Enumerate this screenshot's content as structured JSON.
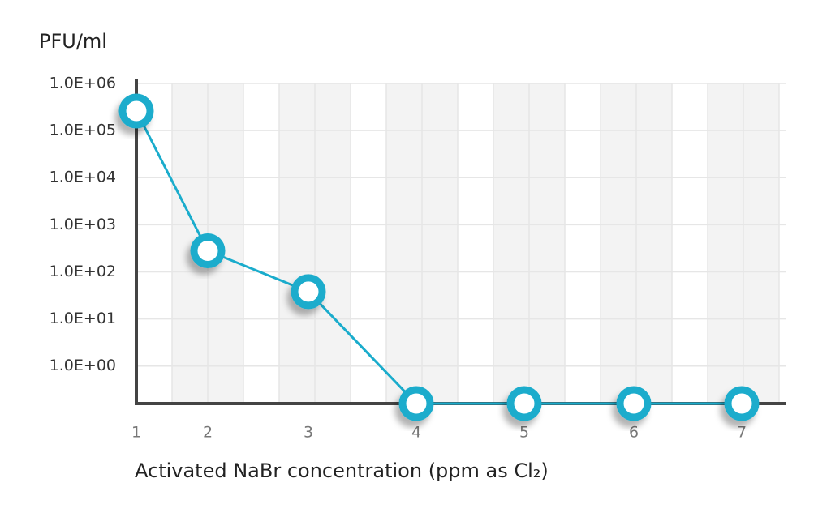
{
  "chart_data": {
    "type": "line",
    "y_label": "PFU/ml",
    "x_label": "Activated NaBr concentration (ppm as Cl₂)",
    "categories": [
      "1",
      "2",
      "3",
      "4",
      "5",
      "6",
      "7"
    ],
    "values": [
      260000,
      280,
      38,
      0.16,
      0.16,
      0.16,
      0.16
    ],
    "color": "#1aaccc",
    "log_scale": true,
    "grid": true,
    "ylim": [
      0.16,
      1000000
    ],
    "yticks": [
      {
        "value": 1,
        "label": "1.0E+00"
      },
      {
        "value": 10,
        "label": "1.0E+01"
      },
      {
        "value": 100,
        "label": "1.0E+02"
      },
      {
        "value": 1000,
        "label": "1.0E+03"
      },
      {
        "value": 10000,
        "label": "1.0E+04"
      },
      {
        "value": 100000,
        "label": "1.0E+05"
      },
      {
        "value": 1000000,
        "label": "1.0E+06"
      }
    ]
  }
}
